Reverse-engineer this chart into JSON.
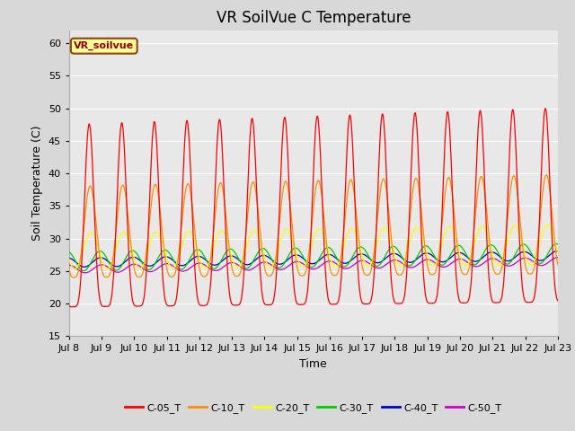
{
  "title": "VR SoilVue C Temperature",
  "xlabel": "Time",
  "ylabel": "Soil Temperature (C)",
  "ylim": [
    15,
    62
  ],
  "yticks": [
    15,
    20,
    25,
    30,
    35,
    40,
    45,
    50,
    55,
    60
  ],
  "date_start": 8,
  "date_end": 23,
  "series_colors": {
    "C-05_T": "#ff0000",
    "C-10_T": "#ff8c00",
    "C-20_T": "#ffff00",
    "C-30_T": "#00cc00",
    "C-40_T": "#0000cc",
    "C-50_T": "#cc00cc"
  },
  "legend_label": "VR_soilvue",
  "legend_box_color": "#ffff99",
  "legend_box_edge": "#8B4513",
  "background_color": "#d8d8d8",
  "plot_bg_color": "#e8e8e8",
  "grid_color": "#ffffff",
  "title_fontsize": 12,
  "axis_label_fontsize": 9,
  "tick_fontsize": 8
}
